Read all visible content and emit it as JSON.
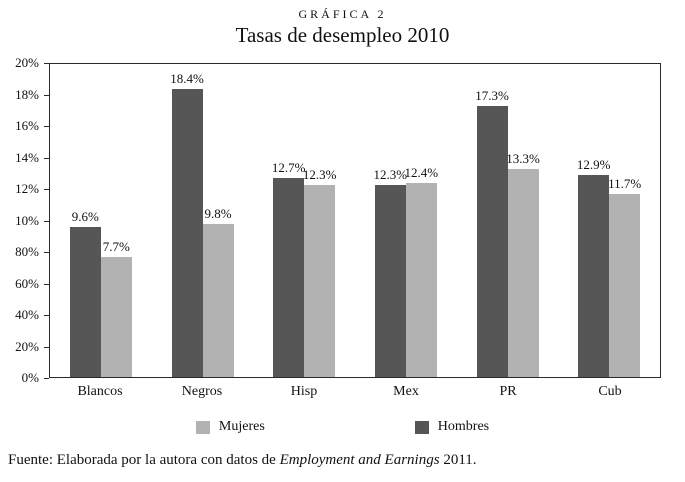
{
  "chart_data": {
    "type": "bar",
    "kicker": "GRÁFICA 2",
    "title": "Tasas de desempleo 2010",
    "categories": [
      "Blancos",
      "Negros",
      "Hisp",
      "Mex",
      "PR",
      "Cub"
    ],
    "series": [
      {
        "name": "Hombres",
        "color": "#565656",
        "values": [
          9.6,
          18.4,
          12.7,
          12.3,
          17.3,
          12.9
        ]
      },
      {
        "name": "Mujeres",
        "color": "#b2b2b2",
        "values": [
          7.7,
          9.8,
          12.3,
          12.4,
          13.3,
          11.7
        ]
      }
    ],
    "bar_order": [
      "Hombres",
      "Mujeres"
    ],
    "value_label_format": "{v}%",
    "ylim": [
      0,
      20
    ],
    "y_axis_tick_labels": [
      "20%",
      "18%",
      "16%",
      "14%",
      "12%",
      "10%",
      "80%",
      "60%",
      "40%",
      "20%",
      "0%"
    ],
    "grid": false,
    "legend_position": "bottom",
    "legend": [
      {
        "label": "Mujeres",
        "color": "#b2b2b2"
      },
      {
        "label": "Hombres",
        "color": "#565656"
      }
    ],
    "source_note": {
      "prefix": "Fuente: Elaborada por la autora con datos de ",
      "italic": "Employment and Earnings",
      "suffix": " 2011."
    }
  }
}
